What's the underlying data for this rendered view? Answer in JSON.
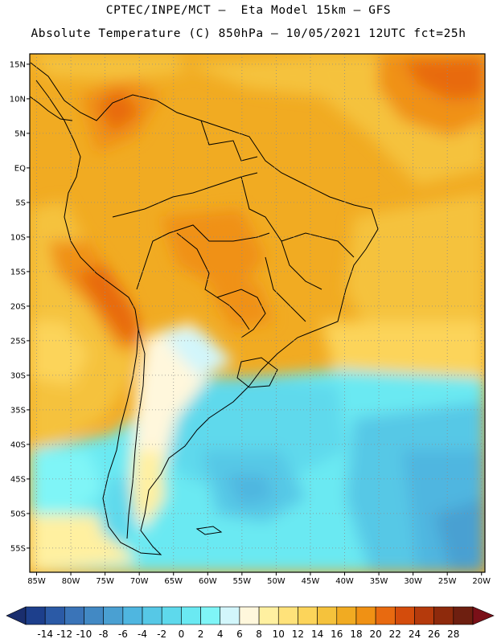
{
  "header": {
    "title_line1": "CPTEC/INPE/MCT –  Eta Model 15km – GFS",
    "title_line2": "Absolute Temperature (C) 850hPa – 10/05/2021 12UTC fct=25h"
  },
  "map": {
    "lon_range": [
      -86,
      -19.5
    ],
    "lat_range": [
      -58.5,
      16.5
    ],
    "lat_ticks": [
      {
        "value": 15,
        "label": "15N"
      },
      {
        "value": 10,
        "label": "10N"
      },
      {
        "value": 5,
        "label": "5N"
      },
      {
        "value": 0,
        "label": "EQ"
      },
      {
        "value": -5,
        "label": "5S"
      },
      {
        "value": -10,
        "label": "10S"
      },
      {
        "value": -15,
        "label": "15S"
      },
      {
        "value": -20,
        "label": "20S"
      },
      {
        "value": -25,
        "label": "25S"
      },
      {
        "value": -30,
        "label": "30S"
      },
      {
        "value": -35,
        "label": "35S"
      },
      {
        "value": -40,
        "label": "40S"
      },
      {
        "value": -45,
        "label": "45S"
      },
      {
        "value": -50,
        "label": "50S"
      },
      {
        "value": -55,
        "label": "55S"
      }
    ],
    "lon_ticks": [
      {
        "value": -85,
        "label": "85W"
      },
      {
        "value": -80,
        "label": "80W"
      },
      {
        "value": -75,
        "label": "75W"
      },
      {
        "value": -70,
        "label": "70W"
      },
      {
        "value": -65,
        "label": "65W"
      },
      {
        "value": -60,
        "label": "60W"
      },
      {
        "value": -55,
        "label": "55W"
      },
      {
        "value": -50,
        "label": "50W"
      },
      {
        "value": -45,
        "label": "45W"
      },
      {
        "value": -40,
        "label": "40W"
      },
      {
        "value": -35,
        "label": "35W"
      },
      {
        "value": -30,
        "label": "30W"
      },
      {
        "value": -25,
        "label": "25W"
      },
      {
        "value": -20,
        "label": "20W"
      }
    ],
    "grid_lines": "dotted"
  },
  "colorbar": {
    "labels": [
      "-14",
      "-12",
      "-10",
      "-8",
      "-6",
      "-4",
      "-2",
      "0",
      "2",
      "4",
      "6",
      "8",
      "10",
      "12",
      "14",
      "16",
      "18",
      "20",
      "22",
      "24",
      "26",
      "28"
    ],
    "colors": [
      "#1d3f8c",
      "#2b5aa6",
      "#3a74b8",
      "#4289c4",
      "#4aa0d2",
      "#4fb6e0",
      "#56c8e6",
      "#5ed9ec",
      "#6ae9f2",
      "#7ff5f7",
      "#d2f6fb",
      "#fff7dc",
      "#fff0a0",
      "#ffe27a",
      "#fcd45a",
      "#f5c23c",
      "#f1ab22",
      "#f09114",
      "#e86a10",
      "#d44c0c",
      "#b53a0c",
      "#8e2a0c",
      "#6e1f10"
    ],
    "left_arrow_color": "#1a2e6e",
    "right_arrow_color": "#7a1018"
  }
}
